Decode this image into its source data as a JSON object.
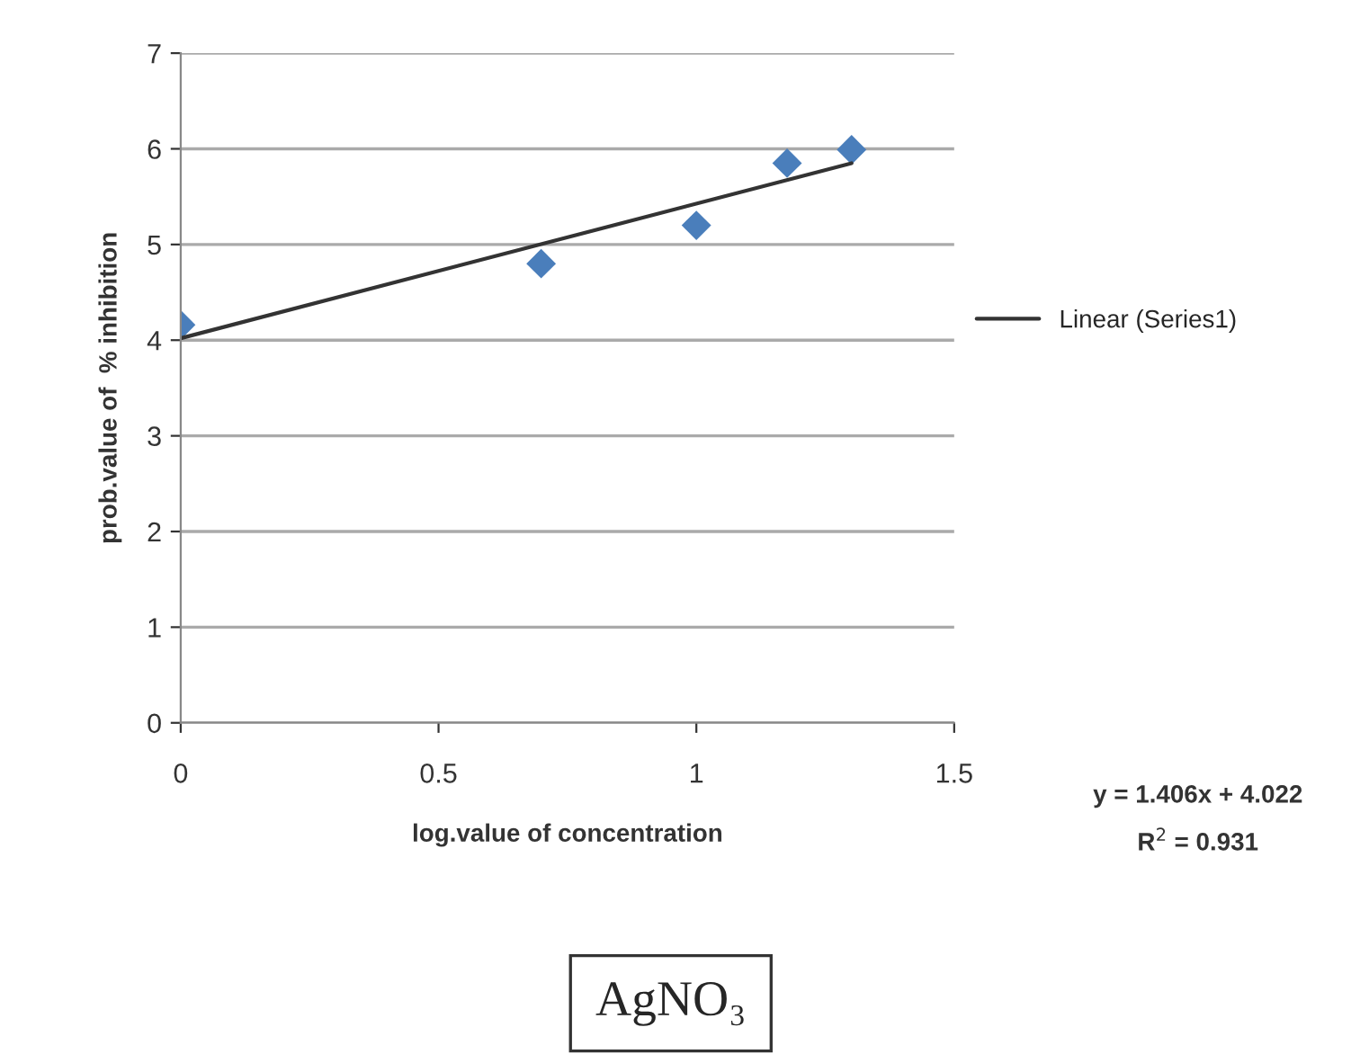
{
  "chart_data": {
    "type": "scatter",
    "xlabel": "log.value of concentration",
    "ylabel": "prob.value of  % inhibition",
    "xlim": [
      0,
      1.5
    ],
    "xticks": [
      0,
      0.5,
      1,
      1.5
    ],
    "ylim": [
      0,
      7
    ],
    "yticks": [
      0,
      1,
      2,
      3,
      4,
      5,
      6,
      7
    ],
    "grid": "y",
    "legend": "right",
    "series": [
      {
        "color": "#4a7ebb",
        "marker": "diamond",
        "x": [
          0,
          0.699,
          1,
          1.176,
          1.301
        ],
        "values": [
          4.16,
          4.8,
          5.2,
          5.85,
          5.99
        ]
      },
      {
        "type": "line",
        "name": "Linear (Series1)",
        "color": "#333333",
        "marker": "none",
        "line_style": "solid",
        "x": [
          0,
          1.301
        ],
        "values": [
          4.02,
          5.85
        ]
      }
    ],
    "annotations": [
      "y = 1.406x + 4.022",
      "R$^{2}$ = 0.931",
      "AgNO₃"
    ]
  }
}
